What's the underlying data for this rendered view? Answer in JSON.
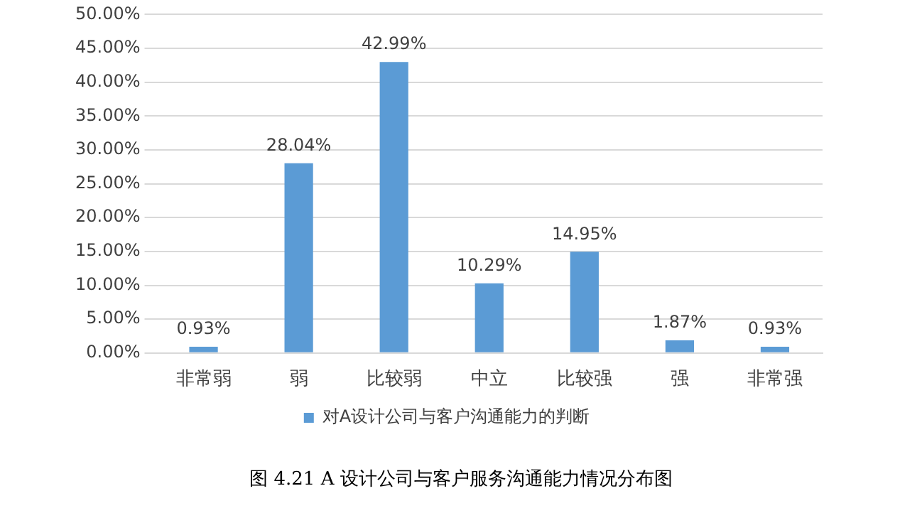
{
  "chart_data": {
    "type": "bar",
    "categories": [
      "非常弱",
      "弱",
      "比较弱",
      "中立",
      "比较强",
      "强",
      "非常强"
    ],
    "series": [
      {
        "name": "对A设计公司与客户沟通能力的判断",
        "color": "#5b9bd5",
        "values": [
          0.93,
          28.04,
          42.99,
          10.29,
          14.95,
          1.87,
          0.93
        ]
      }
    ],
    "ylim": [
      0,
      50
    ],
    "yticks": [
      {
        "value": 0,
        "label": "0.00%"
      },
      {
        "value": 5,
        "label": "5.00%"
      },
      {
        "value": 10,
        "label": "10.00%"
      },
      {
        "value": 15,
        "label": "15.00%"
      },
      {
        "value": 20,
        "label": "20.00%"
      },
      {
        "value": 25,
        "label": "25.00%"
      },
      {
        "value": 30,
        "label": "30.00%"
      },
      {
        "value": 35,
        "label": "35.00%"
      },
      {
        "value": 40,
        "label": "40.00%"
      },
      {
        "value": 45,
        "label": "45.00%"
      },
      {
        "value": 50,
        "label": "50.00%"
      }
    ],
    "value_labels": [
      "0.93%",
      "28.04%",
      "42.99%",
      "10.29%",
      "14.95%",
      "1.87%",
      "0.93%"
    ],
    "grid": "y",
    "legend": "bottom",
    "annotations": [
      "图 4.21 A 设计公司与客户服务沟通能力情况分布图"
    ]
  }
}
